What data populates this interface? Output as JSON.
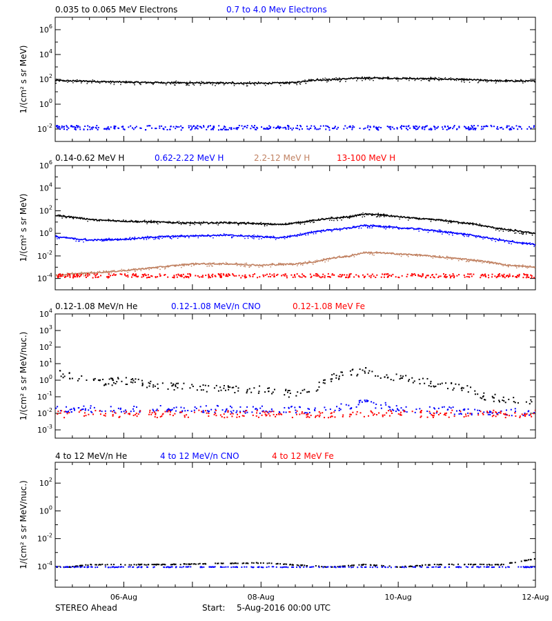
{
  "footer": {
    "spacecraft": "STEREO Ahead",
    "start_label": "Start:",
    "start_value": "5-Aug-2016 00:00 UTC"
  },
  "chart_data": [
    {
      "type": "scatter",
      "panel": 1,
      "ylabel": "1/(cm² s sr MeV)",
      "yscale": "log",
      "ylim_exp": [
        -3,
        7
      ],
      "ytick_exps": [
        -2,
        0,
        2,
        4,
        6
      ],
      "xlim_days": [
        5,
        12
      ],
      "series": [
        {
          "name": "0.035 to 0.065 MeV Electrons",
          "color": "#000000",
          "style": "line",
          "points": [
            [
              5.0,
              80
            ],
            [
              5.5,
              70
            ],
            [
              6.0,
              60
            ],
            [
              6.5,
              55
            ],
            [
              7.0,
              52
            ],
            [
              7.5,
              50
            ],
            [
              8.0,
              48
            ],
            [
              8.5,
              55
            ],
            [
              8.7,
              85
            ],
            [
              9.0,
              95
            ],
            [
              9.5,
              130
            ],
            [
              10.0,
              120
            ],
            [
              10.5,
              110
            ],
            [
              11.0,
              95
            ],
            [
              11.5,
              75
            ],
            [
              12.0,
              70
            ]
          ]
        },
        {
          "name": "0.7 to 4.0 Mev Electrons",
          "color": "#0000ff",
          "style": "scatter",
          "points": [
            [
              5.0,
              0.015
            ],
            [
              6.0,
              0.014
            ],
            [
              7.0,
              0.014
            ],
            [
              8.0,
              0.015
            ],
            [
              9.0,
              0.014
            ],
            [
              10.0,
              0.014
            ],
            [
              11.0,
              0.015
            ],
            [
              12.0,
              0.014
            ]
          ]
        }
      ]
    },
    {
      "type": "scatter",
      "panel": 2,
      "ylabel": "1/(cm² s sr MeV)",
      "yscale": "log",
      "ylim_exp": [
        -5,
        6
      ],
      "ytick_exps": [
        -4,
        -2,
        0,
        2,
        4,
        6
      ],
      "xlim_days": [
        5,
        12
      ],
      "series": [
        {
          "name": "0.14-0.62 MeV H",
          "color": "#000000",
          "style": "line",
          "points": [
            [
              5.0,
              40
            ],
            [
              5.3,
              25
            ],
            [
              5.6,
              15
            ],
            [
              6.0,
              12
            ],
            [
              6.5,
              10
            ],
            [
              7.0,
              8
            ],
            [
              7.5,
              9
            ],
            [
              8.0,
              7
            ],
            [
              8.3,
              6
            ],
            [
              8.6,
              10
            ],
            [
              8.8,
              15
            ],
            [
              9.0,
              20
            ],
            [
              9.3,
              30
            ],
            [
              9.5,
              50
            ],
            [
              9.7,
              45
            ],
            [
              10.0,
              30
            ],
            [
              10.3,
              20
            ],
            [
              10.6,
              15
            ],
            [
              11.0,
              8
            ],
            [
              11.3,
              4
            ],
            [
              11.6,
              2
            ],
            [
              12.0,
              1
            ]
          ]
        },
        {
          "name": "0.62-2.22 MeV H",
          "color": "#0000ff",
          "style": "line",
          "points": [
            [
              5.0,
              0.5
            ],
            [
              5.5,
              0.25
            ],
            [
              6.0,
              0.3
            ],
            [
              6.5,
              0.5
            ],
            [
              7.0,
              0.6
            ],
            [
              7.5,
              0.7
            ],
            [
              8.0,
              0.5
            ],
            [
              8.3,
              0.4
            ],
            [
              8.6,
              0.8
            ],
            [
              8.8,
              1.5
            ],
            [
              9.0,
              2.0
            ],
            [
              9.3,
              3.0
            ],
            [
              9.5,
              5.0
            ],
            [
              9.8,
              4.0
            ],
            [
              10.0,
              3.0
            ],
            [
              10.3,
              2.5
            ],
            [
              10.6,
              1.5
            ],
            [
              11.0,
              0.8
            ],
            [
              11.3,
              0.4
            ],
            [
              11.6,
              0.2
            ],
            [
              12.0,
              0.1
            ]
          ]
        },
        {
          "name": "2.2-12 MeV H",
          "color": "#c08060",
          "style": "line",
          "points": [
            [
              5.0,
              0.0002
            ],
            [
              5.5,
              0.0003
            ],
            [
              6.0,
              0.0005
            ],
            [
              6.5,
              0.001
            ],
            [
              7.0,
              0.002
            ],
            [
              7.5,
              0.002
            ],
            [
              8.0,
              0.0015
            ],
            [
              8.5,
              0.002
            ],
            [
              8.8,
              0.003
            ],
            [
              9.0,
              0.006
            ],
            [
              9.3,
              0.01
            ],
            [
              9.5,
              0.02
            ],
            [
              9.8,
              0.018
            ],
            [
              10.0,
              0.015
            ],
            [
              10.3,
              0.012
            ],
            [
              10.6,
              0.008
            ],
            [
              11.0,
              0.005
            ],
            [
              11.3,
              0.003
            ],
            [
              11.6,
              0.0015
            ],
            [
              12.0,
              0.001
            ]
          ]
        },
        {
          "name": "13-100 MeV H",
          "color": "#ff0000",
          "style": "scatter",
          "points": [
            [
              5.0,
              0.0002
            ],
            [
              6.0,
              0.0002
            ],
            [
              7.0,
              0.0002
            ],
            [
              8.0,
              0.0002
            ],
            [
              9.0,
              0.0002
            ],
            [
              10.0,
              0.0002
            ],
            [
              11.0,
              0.0002
            ],
            [
              12.0,
              0.0002
            ]
          ]
        }
      ]
    },
    {
      "type": "scatter",
      "panel": 3,
      "ylabel": "1/(cm² s sr MeV/nuc.)",
      "yscale": "log",
      "ylim_exp": [
        -3.5,
        4
      ],
      "ytick_exps": [
        -3,
        -2,
        -1,
        0,
        1,
        2,
        3,
        4
      ],
      "xlim_days": [
        5,
        12
      ],
      "series": [
        {
          "name": "0.12-1.08 MeV/n He",
          "color": "#000000",
          "style": "scatter",
          "points": [
            [
              5.0,
              3.0
            ],
            [
              5.3,
              1.5
            ],
            [
              5.6,
              0.8
            ],
            [
              6.0,
              1.0
            ],
            [
              6.5,
              0.5
            ],
            [
              7.0,
              0.4
            ],
            [
              7.5,
              0.3
            ],
            [
              8.0,
              0.3
            ],
            [
              8.5,
              0.15
            ],
            [
              8.8,
              0.4
            ],
            [
              9.0,
              1.5
            ],
            [
              9.3,
              3.0
            ],
            [
              9.5,
              4.0
            ],
            [
              9.8,
              2.0
            ],
            [
              10.0,
              1.5
            ],
            [
              10.3,
              1.0
            ],
            [
              10.6,
              0.6
            ],
            [
              11.0,
              0.3
            ],
            [
              11.3,
              0.1
            ],
            [
              11.6,
              0.08
            ],
            [
              12.0,
              0.05
            ]
          ]
        },
        {
          "name": "0.12-1.08 MeV/n CNO",
          "color": "#0000ff",
          "style": "scatter",
          "points": [
            [
              5.0,
              0.02
            ],
            [
              6.0,
              0.018
            ],
            [
              7.0,
              0.02
            ],
            [
              8.0,
              0.018
            ],
            [
              9.0,
              0.02
            ],
            [
              9.5,
              0.05
            ],
            [
              10.0,
              0.02
            ],
            [
              11.0,
              0.015
            ],
            [
              12.0,
              0.012
            ]
          ]
        },
        {
          "name": "0.12-1.08 MeV Fe",
          "color": "#ff0000",
          "style": "scatter",
          "points": [
            [
              5.0,
              0.01
            ],
            [
              6.0,
              0.01
            ],
            [
              7.0,
              0.01
            ],
            [
              8.0,
              0.01
            ],
            [
              9.0,
              0.01
            ],
            [
              10.0,
              0.01
            ],
            [
              11.0,
              0.01
            ],
            [
              12.0,
              0.01
            ]
          ]
        }
      ]
    },
    {
      "type": "scatter",
      "panel": 4,
      "ylabel": "1/(cm² s sr MeV/nuc.)",
      "yscale": "log",
      "ylim_exp": [
        -5.5,
        3.5
      ],
      "ytick_exps": [
        -4,
        -2,
        0,
        2
      ],
      "xlim_days": [
        5,
        12
      ],
      "series": [
        {
          "name": "4 to 12 MeV/n He",
          "color": "#000000",
          "style": "scatter",
          "points": [
            [
              5.2,
              0.0001
            ],
            [
              5.5,
              0.00015
            ],
            [
              6.5,
              0.00015
            ],
            [
              8.0,
              0.0002
            ],
            [
              9.0,
              0.0001
            ],
            [
              9.5,
              0.00015
            ],
            [
              10.0,
              0.0001
            ],
            [
              10.5,
              0.00015
            ],
            [
              11.0,
              0.00015
            ],
            [
              11.5,
              0.00015
            ],
            [
              12.0,
              0.0004
            ]
          ]
        },
        {
          "name": "4 to 12 MeV/n CNO",
          "color": "#0000ff",
          "style": "scatter",
          "points": [
            [
              5.3,
              0.0001
            ],
            [
              6.0,
              0.0001
            ],
            [
              7.0,
              0.0001
            ],
            [
              8.0,
              0.0001
            ],
            [
              9.0,
              0.0001
            ],
            [
              10.0,
              0.0001
            ],
            [
              11.0,
              0.0001
            ],
            [
              11.8,
              0.0001
            ]
          ]
        },
        {
          "name": "4 to 12 MeV Fe",
          "color": "#ff0000",
          "style": "scatter",
          "points": []
        }
      ]
    }
  ],
  "x_axis": {
    "tick_labels": [
      {
        "day": 6,
        "label": "06-Aug"
      },
      {
        "day": 8,
        "label": "08-Aug"
      },
      {
        "day": 10,
        "label": "10-Aug"
      },
      {
        "day": 12,
        "label": "12-Aug"
      }
    ]
  }
}
